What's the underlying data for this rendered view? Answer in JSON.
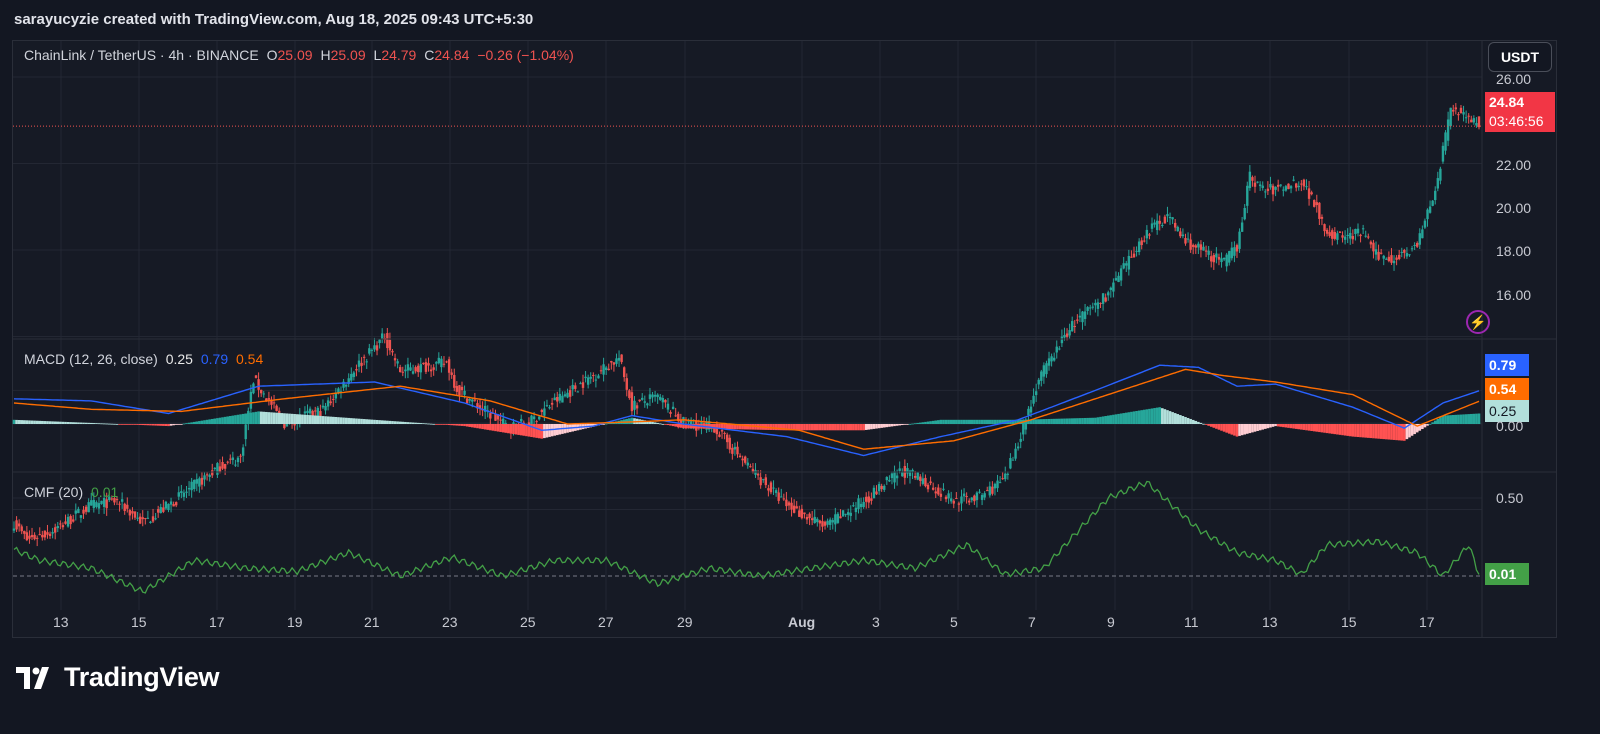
{
  "caption": "sarayucyzie created with TradingView.com, Aug 18, 2025 09:43 UTC+5:30",
  "symbol": {
    "title": "ChainLink / TetherUS · 4h · BINANCE",
    "o_label": "O",
    "o_value": "25.09",
    "h_label": "H",
    "h_value": "25.09",
    "l_label": "L",
    "l_value": "24.79",
    "c_label": "C",
    "c_value": "24.84",
    "change": "−0.26 (−1.04%)"
  },
  "currency_button": "USDT",
  "price_tag": {
    "price": "24.84",
    "countdown": "03:46:56"
  },
  "price_axis": [
    "26.00",
    "22.00",
    "20.00",
    "18.00",
    "16.00"
  ],
  "macd": {
    "label": "MACD (12, 26, close)",
    "hist": "0.25",
    "macd": "0.79",
    "signal": "0.54",
    "zero_label": "0.00"
  },
  "cmf": {
    "label": "CMF (20)",
    "value": "0.01",
    "top_label": "0.50"
  },
  "x_labels": [
    "13",
    "15",
    "17",
    "19",
    "21",
    "23",
    "25",
    "27",
    "29",
    "Aug",
    "3",
    "5",
    "7",
    "9",
    "11",
    "13",
    "15",
    "17"
  ],
  "brand": "TradingView",
  "colors": {
    "up": "#26a69a",
    "down": "#ef5350",
    "macd": "#2962ff",
    "signal": "#ff6d00",
    "cmf": "#43a047",
    "background": "#131722"
  },
  "chart_data": [
    {
      "type": "candlestick",
      "title": "ChainLink / TetherUS · 4h · BINANCE",
      "ylabel": "USDT",
      "ylim": [
        14.6,
        26.6
      ],
      "x": [
        "Aug 13",
        "Aug 15",
        "Aug 17",
        "Aug 19",
        "Aug 21",
        "Aug 23",
        "Aug 25",
        "Aug 27",
        "Aug 29",
        "Aug",
        "3",
        "5",
        "7",
        "9",
        "11",
        "13",
        "15",
        "17"
      ],
      "close_anchors": [
        [
          0,
          15.7
        ],
        [
          5,
          15.3
        ],
        [
          15,
          15.5
        ],
        [
          30,
          16.1
        ],
        [
          40,
          16.2
        ],
        [
          50,
          15.7
        ],
        [
          60,
          16.1
        ],
        [
          80,
          17.0
        ],
        [
          88,
          17.2
        ],
        [
          93,
          19.0
        ],
        [
          105,
          18.0
        ],
        [
          120,
          18.3
        ],
        [
          133,
          19.3
        ],
        [
          144,
          20.0
        ],
        [
          150,
          19.2
        ],
        [
          168,
          19.4
        ],
        [
          172,
          18.8
        ],
        [
          180,
          18.4
        ],
        [
          192,
          17.9
        ],
        [
          200,
          18.0
        ],
        [
          210,
          18.5
        ],
        [
          235,
          19.5
        ],
        [
          240,
          18.4
        ],
        [
          250,
          18.6
        ],
        [
          260,
          18.0
        ],
        [
          272,
          17.9
        ],
        [
          285,
          17.0
        ],
        [
          300,
          16.1
        ],
        [
          315,
          15.6
        ],
        [
          330,
          16.2
        ],
        [
          345,
          16.9
        ],
        [
          355,
          16.6
        ],
        [
          365,
          16.2
        ],
        [
          375,
          16.3
        ],
        [
          385,
          16.7
        ],
        [
          398,
          19.0
        ],
        [
          410,
          20.2
        ],
        [
          425,
          21.0
        ],
        [
          440,
          22.4
        ],
        [
          448,
          22.8
        ],
        [
          455,
          22.2
        ],
        [
          470,
          21.7
        ],
        [
          475,
          22.1
        ],
        [
          480,
          23.7
        ],
        [
          485,
          23.4
        ],
        [
          490,
          23.4
        ],
        [
          500,
          23.6
        ],
        [
          506,
          23.0
        ],
        [
          510,
          22.4
        ],
        [
          515,
          22.3
        ],
        [
          525,
          22.4
        ],
        [
          528,
          21.9
        ],
        [
          535,
          21.8
        ],
        [
          545,
          22.1
        ],
        [
          553,
          23.6
        ],
        [
          558,
          25.3
        ],
        [
          565,
          25.1
        ],
        [
          569,
          24.84
        ]
      ],
      "current_price": 24.84,
      "open": 25.09,
      "high": 25.09,
      "low": 24.79,
      "close": 24.84
    },
    {
      "type": "line",
      "title": "MACD (12, 26, close)",
      "ylim": [
        -0.9,
        1.6
      ],
      "series": [
        {
          "name": "MACD",
          "anchors": [
            [
              0,
              0.6
            ],
            [
              30,
              0.55
            ],
            [
              60,
              0.25
            ],
            [
              95,
              0.9
            ],
            [
              140,
              1.0
            ],
            [
              175,
              0.5
            ],
            [
              205,
              -0.15
            ],
            [
              225,
              -0.05
            ],
            [
              240,
              0.2
            ],
            [
              260,
              0.0
            ],
            [
              300,
              -0.3
            ],
            [
              330,
              -0.75
            ],
            [
              360,
              -0.3
            ],
            [
              390,
              0.1
            ],
            [
              420,
              0.8
            ],
            [
              445,
              1.4
            ],
            [
              460,
              1.35
            ],
            [
              475,
              0.9
            ],
            [
              490,
              0.95
            ],
            [
              520,
              0.4
            ],
            [
              540,
              -0.1
            ],
            [
              555,
              0.5
            ],
            [
              569,
              0.79
            ]
          ]
        },
        {
          "name": "Signal",
          "anchors": [
            [
              0,
              0.5
            ],
            [
              30,
              0.35
            ],
            [
              65,
              0.3
            ],
            [
              105,
              0.6
            ],
            [
              150,
              0.9
            ],
            [
              185,
              0.55
            ],
            [
              215,
              0.0
            ],
            [
              240,
              0.05
            ],
            [
              260,
              0.1
            ],
            [
              305,
              -0.15
            ],
            [
              330,
              -0.6
            ],
            [
              365,
              -0.4
            ],
            [
              395,
              0.1
            ],
            [
              425,
              0.7
            ],
            [
              455,
              1.3
            ],
            [
              470,
              1.15
            ],
            [
              490,
              1.0
            ],
            [
              520,
              0.7
            ],
            [
              545,
              -0.05
            ],
            [
              569,
              0.54
            ]
          ]
        },
        {
          "name": "Histogram",
          "anchors": [
            [
              0,
              0.1
            ],
            [
              60,
              -0.05
            ],
            [
              95,
              0.3
            ],
            [
              140,
              0.1
            ],
            [
              175,
              -0.05
            ],
            [
              205,
              -0.35
            ],
            [
              240,
              0.15
            ],
            [
              260,
              -0.1
            ],
            [
              300,
              -0.15
            ],
            [
              330,
              -0.15
            ],
            [
              360,
              0.1
            ],
            [
              390,
              0.1
            ],
            [
              420,
              0.15
            ],
            [
              445,
              0.4
            ],
            [
              460,
              0.05
            ],
            [
              475,
              -0.3
            ],
            [
              490,
              -0.05
            ],
            [
              520,
              -0.3
            ],
            [
              540,
              -0.4
            ],
            [
              555,
              0.2
            ],
            [
              569,
              0.25
            ]
          ]
        }
      ]
    },
    {
      "type": "line",
      "title": "CMF (20)",
      "ylim": [
        -0.15,
        0.62
      ],
      "series": [
        {
          "name": "CMF",
          "anchors": [
            [
              0,
              0.17
            ],
            [
              10,
              0.1
            ],
            [
              30,
              0.05
            ],
            [
              50,
              -0.1
            ],
            [
              70,
              0.1
            ],
            [
              90,
              0.05
            ],
            [
              110,
              0.03
            ],
            [
              130,
              0.15
            ],
            [
              150,
              0.0
            ],
            [
              170,
              0.12
            ],
            [
              190,
              0.0
            ],
            [
              210,
              0.1
            ],
            [
              230,
              0.1
            ],
            [
              250,
              -0.05
            ],
            [
              270,
              0.05
            ],
            [
              290,
              0.0
            ],
            [
              310,
              0.05
            ],
            [
              330,
              0.1
            ],
            [
              350,
              0.05
            ],
            [
              370,
              0.2
            ],
            [
              385,
              0.01
            ],
            [
              400,
              0.05
            ],
            [
              425,
              0.5
            ],
            [
              440,
              0.6
            ],
            [
              460,
              0.3
            ],
            [
              475,
              0.15
            ],
            [
              490,
              0.1
            ],
            [
              500,
              0.01
            ],
            [
              510,
              0.2
            ],
            [
              530,
              0.22
            ],
            [
              545,
              0.15
            ],
            [
              555,
              0.0
            ],
            [
              565,
              0.2
            ],
            [
              569,
              0.01
            ]
          ]
        }
      ]
    }
  ]
}
